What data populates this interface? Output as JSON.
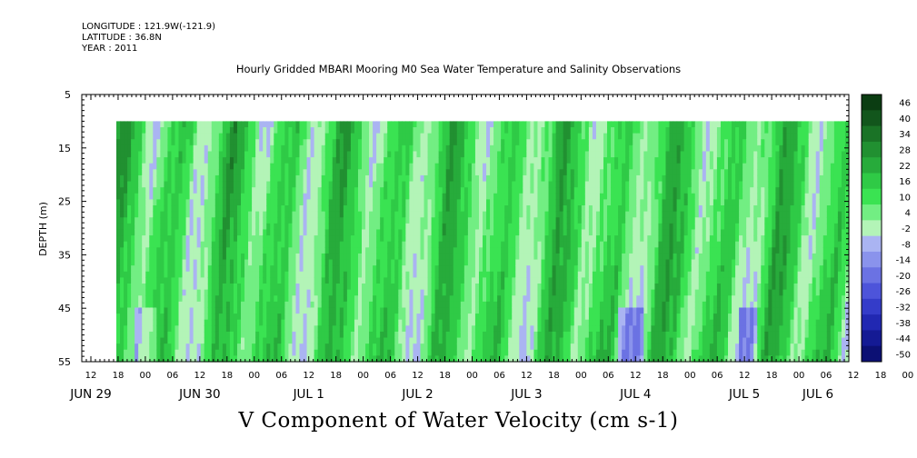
{
  "header": {
    "longitude": "LONGITUDE : 121.9W(-121.9)",
    "latitude": "LATITUDE : 36.8N",
    "year": "YEAR : 2011"
  },
  "chart_data": {
    "type": "heatmap",
    "title": "Hourly Gridded MBARI Mooring M0 Sea Water Temperature and Salinity Observations",
    "ylabel": "DEPTH (m)",
    "variable_label": "V Component of Water Velocity (cm s-1)",
    "y_ticks": [
      5,
      15,
      25,
      35,
      45,
      55
    ],
    "ylim": [
      5,
      55
    ],
    "y_inverted": true,
    "data_depth_range": [
      10,
      55
    ],
    "x_hour_labels": [
      "12",
      "18",
      "00",
      "06",
      "12",
      "18",
      "00",
      "06",
      "12",
      "18",
      "00",
      "06",
      "12",
      "18",
      "00",
      "06",
      "12",
      "18",
      "00",
      "06",
      "12",
      "18",
      "00",
      "06",
      "12",
      "18",
      "00",
      "06",
      "12",
      "18",
      "00",
      "06"
    ],
    "x_day_labels": [
      "JUN 29",
      "JUN 30",
      "JUL  1",
      "JUL  2",
      "JUL  3",
      "JUL  4",
      "JUL  5",
      "JUL  6"
    ],
    "data_time_range": [
      "JUN 29 17:00",
      "JUL 6 13:00"
    ],
    "colorbar_levels": [
      46,
      40,
      34,
      28,
      22,
      16,
      10,
      4,
      -2,
      -8,
      -14,
      -20,
      -26,
      -32,
      -38,
      -44,
      -50
    ],
    "colorbar_colors": [
      "#0b3d12",
      "#12561c",
      "#1a7326",
      "#219031",
      "#27ab3b",
      "#2fca46",
      "#3ae352",
      "#72ee83",
      "#b3f4b7",
      "#aab4f2",
      "#8a93ec",
      "#6b72e3",
      "#4d54da",
      "#343cc9",
      "#2128b2",
      "#141a94",
      "#0c1074"
    ],
    "dominant_pattern": "alternating bands of positive (green) and negative (light blue) values tilted across depth over time",
    "strong_negative_episodes": [
      "JUN 29 ~20-24h deep",
      "JUN 30 ~10-14h",
      "JUL 1 ~10-14h",
      "JUL 2 ~18-24h",
      "JUL 3 ~16-22h",
      "JUL 4 ~10-14h deep",
      "JUL 5 ~10-12h deep"
    ]
  }
}
